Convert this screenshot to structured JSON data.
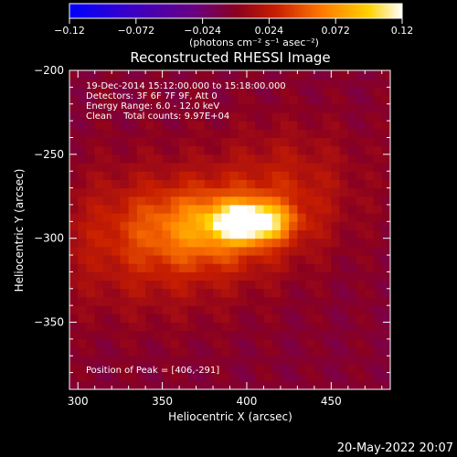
{
  "chart_data": {
    "type": "heatmap",
    "title": "Reconstructed RHESSI Image",
    "xlabel": "Heliocentric X (arcsec)",
    "ylabel": "Heliocentric Y (arcsec)",
    "xlim": [
      295,
      485
    ],
    "ylim": [
      -390,
      -200
    ],
    "x_ticks": [
      300,
      350,
      400,
      450
    ],
    "y_ticks": [
      -200,
      -250,
      -300,
      -350
    ],
    "annotations": [
      "19-Dec-2014 15:12:00.000 to 15:18:00.000",
      "Detectors: 3F 6F 7F 9F, Att 0",
      "Energy Range: 6.0 - 12.0 keV",
      "Clean    Total counts: 9.97E+04"
    ],
    "peak_label": "Position of Peak = [406,-291]",
    "peak": {
      "x": 406,
      "y": -291
    },
    "colorbar": {
      "min": -0.12,
      "max": 0.12,
      "ticks": [
        "-0.12",
        "-0.072",
        "-0.024",
        "0.024",
        "0.072",
        "0.12"
      ],
      "unit_label": "(photons cm⁻² s⁻¹ asec⁻²)"
    },
    "sources": [
      {
        "x": 402,
        "y": -290,
        "amp": 0.12,
        "sx": 14,
        "sy": 7
      },
      {
        "x": 380,
        "y": -293,
        "amp": 0.05,
        "sx": 30,
        "sy": 16
      },
      {
        "x": 345,
        "y": -300,
        "amp": 0.035,
        "sx": 45,
        "sy": 30
      },
      {
        "x": 425,
        "y": -268,
        "amp": 0.025,
        "sx": 30,
        "sy": 25
      }
    ]
  },
  "timestamp": "20-May-2022 20:07"
}
